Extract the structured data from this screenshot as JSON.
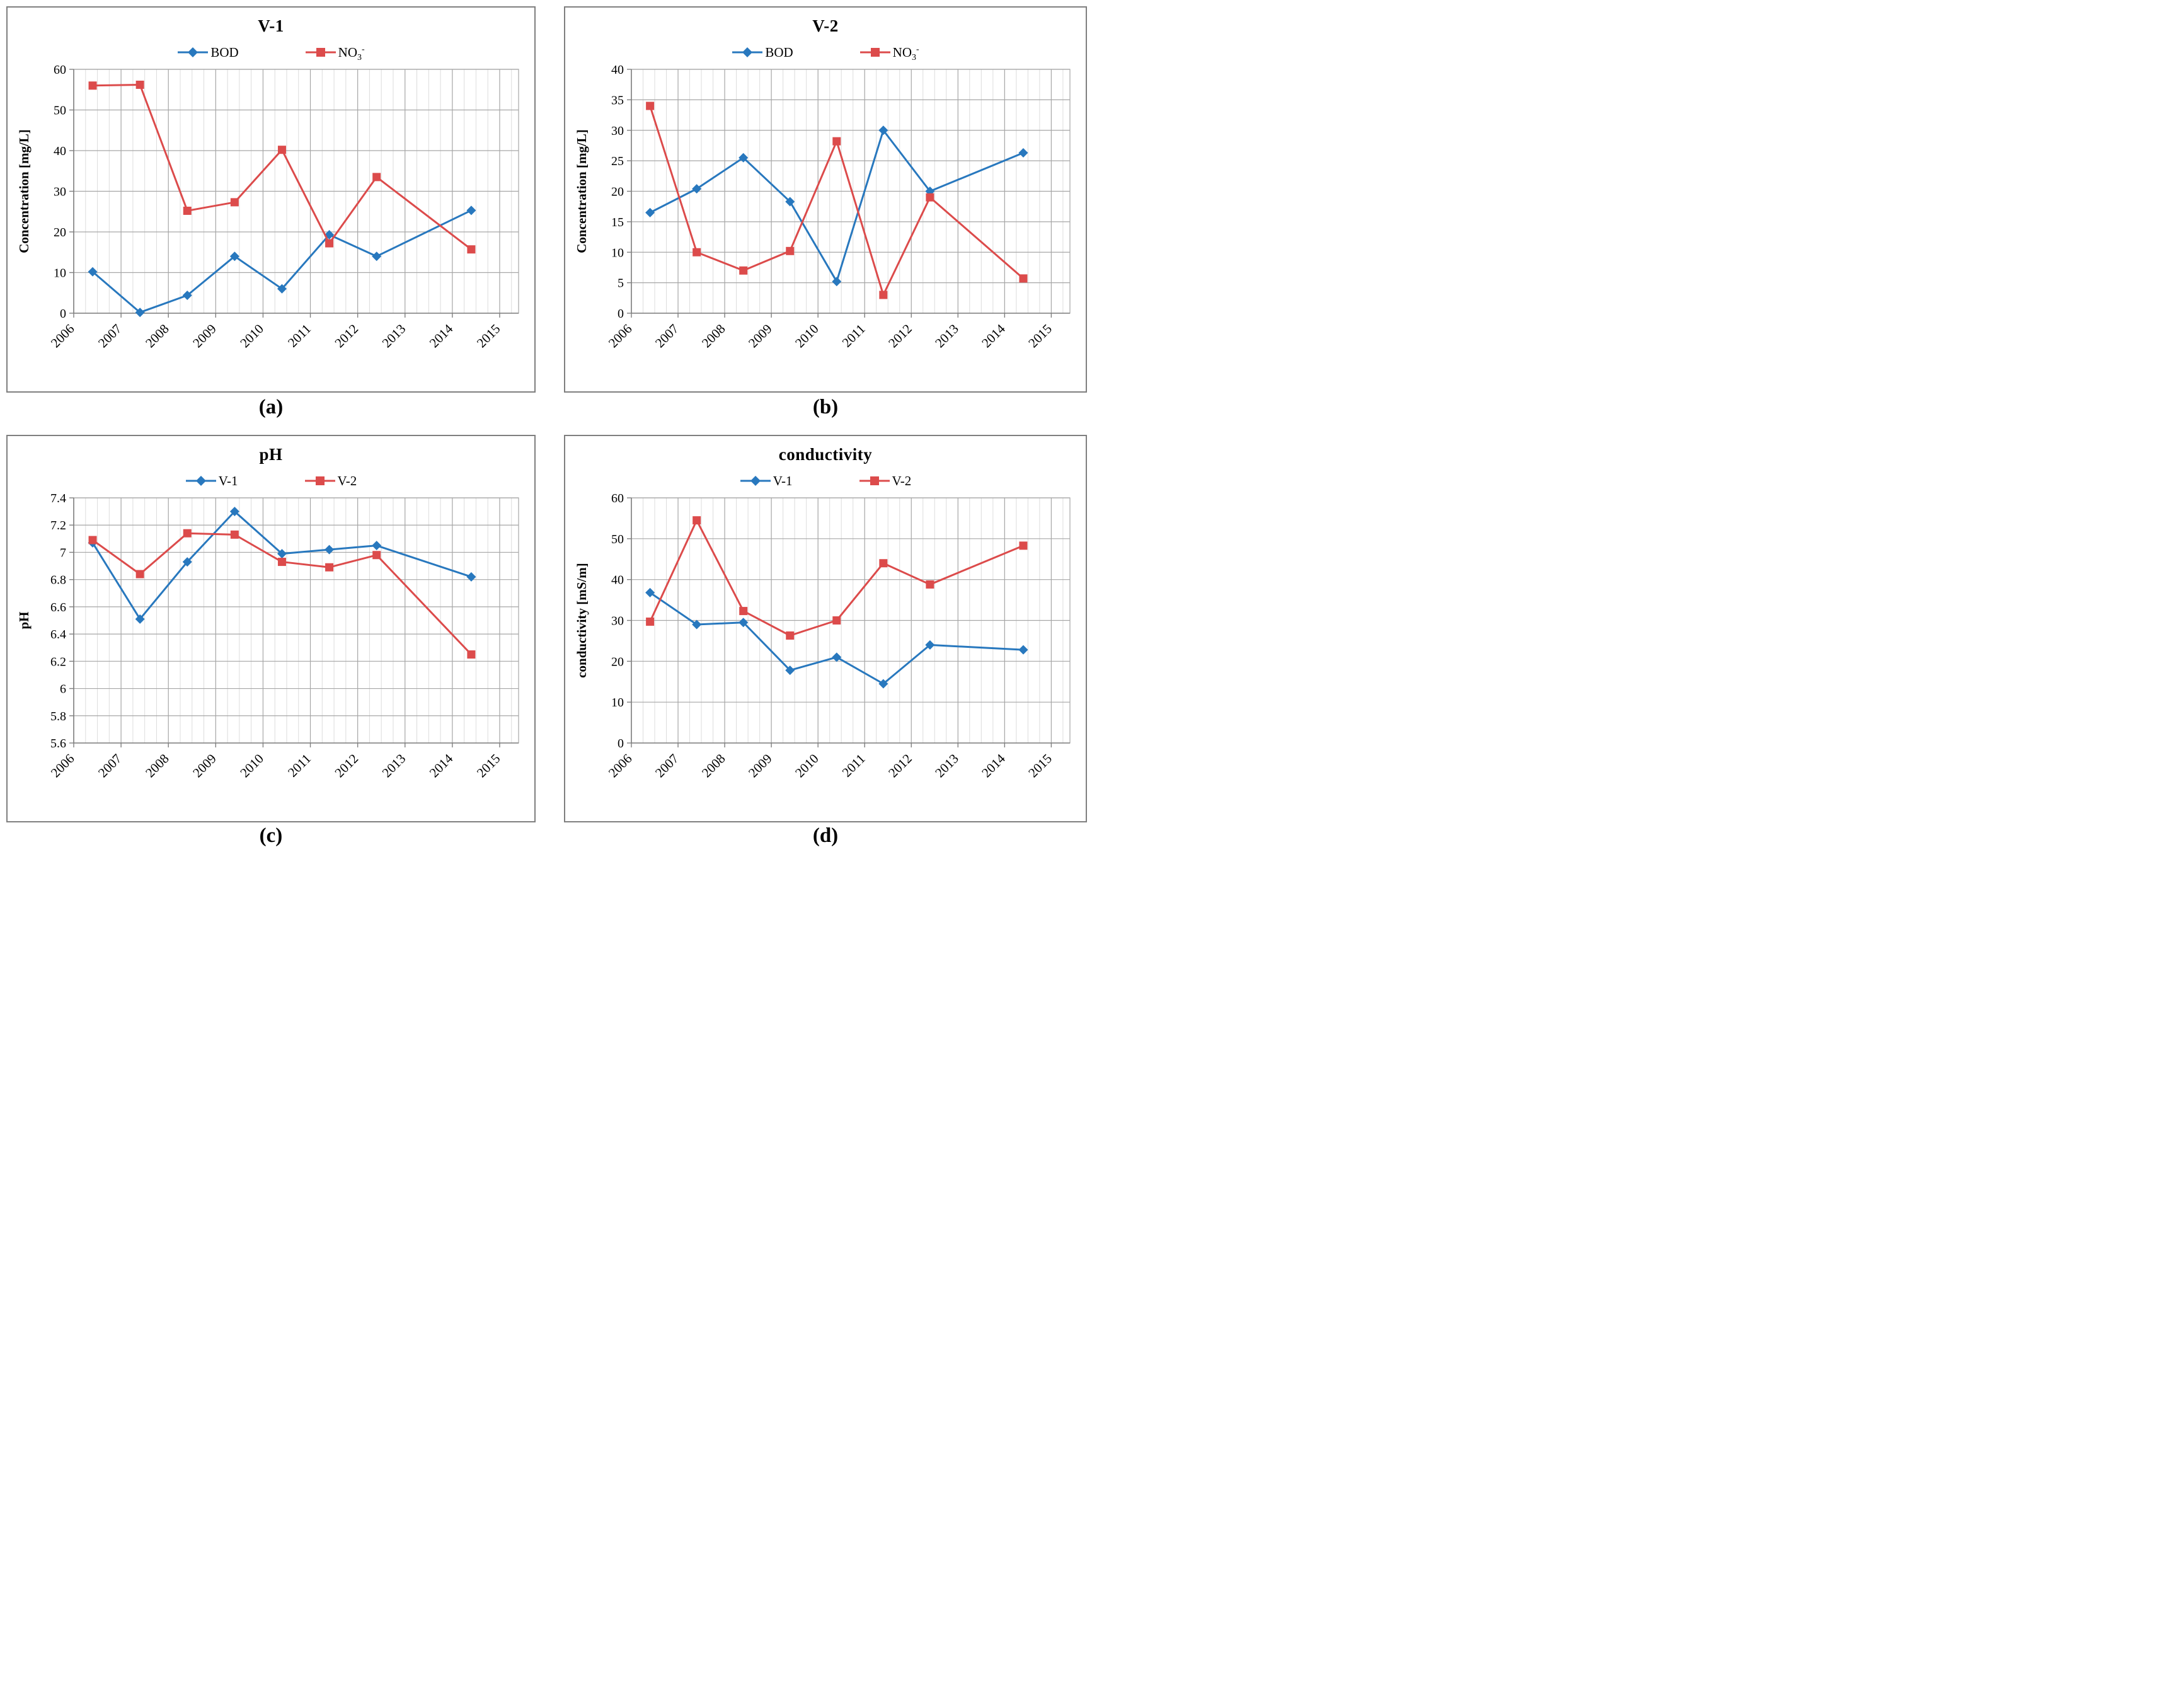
{
  "colors": {
    "series_blue": "#2878BE",
    "series_red": "#DC4B4B",
    "grid_major": "#a6a6a6",
    "grid_minor": "#dcdcdc",
    "axis": "#7f7f7f",
    "panel_border": "#7f7f7f",
    "text": "#000000"
  },
  "chart_data": [
    {
      "id": "a",
      "type": "line",
      "title": "V-1",
      "caption": "(a)",
      "ylabel": "Concentration [mg/L]",
      "xticks": [
        "2006",
        "2007",
        "2008",
        "2009",
        "2010",
        "2011",
        "2012",
        "2013",
        "2014",
        "2015"
      ],
      "x_years": [
        2006,
        2007,
        2008,
        2009,
        2010,
        2011,
        2012,
        2014
      ],
      "point_offset": 0.4,
      "ylim": [
        0,
        60
      ],
      "yticks": [
        0,
        10,
        20,
        30,
        40,
        50,
        60
      ],
      "grid": "major-h major-v minor-v",
      "legend_position": "top",
      "series": [
        {
          "name": "BOD",
          "legend": {
            "base": "BOD"
          },
          "marker": "diamond",
          "color": "#2878BE",
          "values": [
            10.2,
            0.2,
            4.4,
            14,
            6,
            19.3,
            14,
            25.3
          ]
        },
        {
          "name": "NO3-",
          "legend": {
            "base": "NO",
            "sub": "3",
            "sup": "-"
          },
          "marker": "square",
          "color": "#DC4B4B",
          "values": [
            56,
            56.2,
            25.2,
            27.3,
            40.2,
            17.2,
            33.5,
            15.7
          ]
        }
      ]
    },
    {
      "id": "b",
      "type": "line",
      "title": "V-2",
      "caption": "(b)",
      "ylabel": "Concentration [mg/L]",
      "xticks": [
        "2006",
        "2007",
        "2008",
        "2009",
        "2010",
        "2011",
        "2012",
        "2013",
        "2014",
        "2015"
      ],
      "x_years": [
        2006,
        2007,
        2008,
        2009,
        2010,
        2011,
        2012,
        2014
      ],
      "point_offset": 0.4,
      "ylim": [
        0,
        40
      ],
      "yticks": [
        0,
        5,
        10,
        15,
        20,
        25,
        30,
        35,
        40
      ],
      "grid": "major-h major-v minor-v",
      "legend_position": "top",
      "series": [
        {
          "name": "BOD",
          "legend": {
            "base": "BOD"
          },
          "marker": "diamond",
          "color": "#2878BE",
          "values": [
            16.5,
            20.4,
            25.5,
            18.3,
            5.2,
            30,
            20,
            26.3
          ]
        },
        {
          "name": "NO3-",
          "legend": {
            "base": "NO",
            "sub": "3",
            "sup": "-"
          },
          "marker": "square",
          "color": "#DC4B4B",
          "values": [
            34,
            10,
            7,
            10.2,
            28.2,
            3,
            19,
            5.7
          ]
        }
      ]
    },
    {
      "id": "c",
      "type": "line",
      "title": "pH",
      "caption": "(c)",
      "ylabel": "pH",
      "xticks": [
        "2006",
        "2007",
        "2008",
        "2009",
        "2010",
        "2011",
        "2012",
        "2013",
        "2014",
        "2015"
      ],
      "x_years": [
        2006,
        2007,
        2008,
        2009,
        2010,
        2011,
        2012,
        2014
      ],
      "point_offset": 0.4,
      "ylim": [
        5.6,
        7.4
      ],
      "yticks": [
        5.6,
        5.8,
        6,
        6.2,
        6.4,
        6.6,
        6.8,
        7,
        7.2,
        7.4
      ],
      "grid": "major-h major-v minor-v",
      "legend_position": "top",
      "series": [
        {
          "name": "V-1",
          "legend": {
            "base": "V-1"
          },
          "marker": "diamond",
          "color": "#2878BE",
          "values": [
            7.07,
            6.51,
            6.93,
            7.3,
            6.99,
            7.02,
            7.05,
            6.82
          ]
        },
        {
          "name": "V-2",
          "legend": {
            "base": "V-2"
          },
          "marker": "square",
          "color": "#DC4B4B",
          "values": [
            7.09,
            6.84,
            7.14,
            7.13,
            6.93,
            6.89,
            6.98,
            6.25
          ]
        }
      ]
    },
    {
      "id": "d",
      "type": "line",
      "title": "conductivity",
      "caption": "(d)",
      "ylabel": "conductivity [mS/m]",
      "xticks": [
        "2006",
        "2007",
        "2008",
        "2009",
        "2010",
        "2011",
        "2012",
        "2013",
        "2014",
        "2015"
      ],
      "x_years": [
        2006,
        2007,
        2008,
        2009,
        2010,
        2011,
        2012,
        2014
      ],
      "point_offset": 0.4,
      "ylim": [
        0,
        60
      ],
      "yticks": [
        0,
        10,
        20,
        30,
        40,
        50,
        60
      ],
      "grid": "major-h major-v minor-v",
      "legend_position": "top",
      "series": [
        {
          "name": "V-1",
          "legend": {
            "base": "V-1"
          },
          "marker": "diamond",
          "color": "#2878BE",
          "values": [
            36.8,
            29,
            29.5,
            17.8,
            21,
            14.5,
            24,
            22.8
          ]
        },
        {
          "name": "V-2",
          "legend": {
            "base": "V-2"
          },
          "marker": "square",
          "color": "#DC4B4B",
          "values": [
            29.7,
            54.5,
            32.3,
            26.3,
            30,
            44,
            38.8,
            48.3
          ]
        }
      ]
    }
  ]
}
